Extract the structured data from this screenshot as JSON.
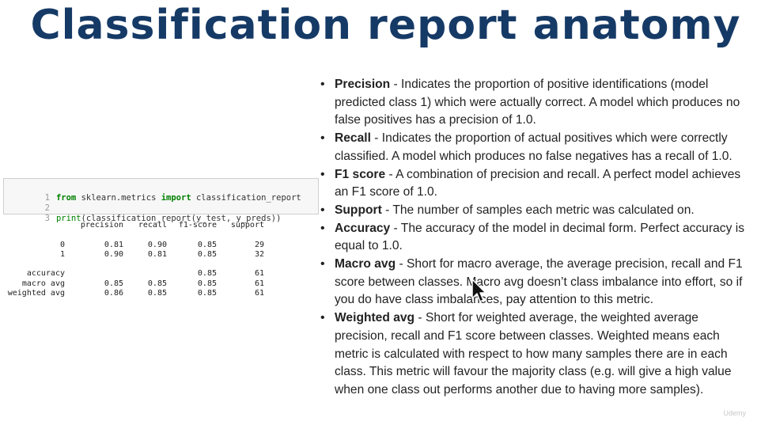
{
  "slide": {
    "title": "Classification report anatomy"
  },
  "code_cell": {
    "lines": [
      {
        "num": "1",
        "kw1": "from",
        "module": "sklearn.metrics",
        "kw2": "import",
        "name": "classification_report"
      },
      {
        "num": "2"
      },
      {
        "num": "3",
        "func": "print",
        "args": "(classification_report(y_test, y_preds))"
      }
    ]
  },
  "report": {
    "header": [
      "",
      "precision",
      "recall",
      "f1-score",
      "support"
    ],
    "rows": [
      [
        "0",
        "0.81",
        "0.90",
        "0.85",
        "29"
      ],
      [
        "1",
        "0.90",
        "0.81",
        "0.85",
        "32"
      ],
      [
        "",
        "",
        "",
        "",
        ""
      ],
      [
        "accuracy",
        "",
        "",
        "0.85",
        "61"
      ],
      [
        "macro avg",
        "0.85",
        "0.85",
        "0.85",
        "61"
      ],
      [
        "weighted avg",
        "0.86",
        "0.85",
        "0.85",
        "61"
      ]
    ]
  },
  "metrics": [
    {
      "term": "Precision",
      "desc": " - Indicates the proportion of positive identifications (model predicted class 1) which were actually correct. A model which produces no false positives has a precision of 1.0."
    },
    {
      "term": "Recall",
      "desc": " - Indicates the proportion of actual positives which were correctly classified. A model which produces no false negatives has a recall of 1.0."
    },
    {
      "term": "F1 score",
      "desc": " - A combination of precision and recall. A perfect model achieves an F1 score of 1.0."
    },
    {
      "term": "Support",
      "desc": " - The number of samples each metric was calculated on."
    },
    {
      "term": "Accuracy",
      "desc": " - The accuracy of the model in decimal form. Perfect accuracy is equal to 1.0."
    },
    {
      "term": "Macro avg",
      "desc": " - Short for macro average, the average precision, recall and F1 score between classes. Macro avg doesn’t class imbalance into effort, so if you do have class imbalances, pay attention to this metric."
    },
    {
      "term": "Weighted avg",
      "desc": " - Short for weighted average, the weighted average precision, recall and F1 score between classes. Weighted means each metric is calculated with respect to how many samples there are in each class. This metric will favour the majority class (e.g. will give a high value when one class out performs another due to having more samples)."
    }
  ],
  "icons": {
    "cursor": "mouse-pointer-icon"
  },
  "watermark": "Udemy",
  "colors": {
    "title": "#163a66",
    "keyword": "#008000",
    "module": "#0000ff",
    "code_background": "#f7f7f7"
  }
}
